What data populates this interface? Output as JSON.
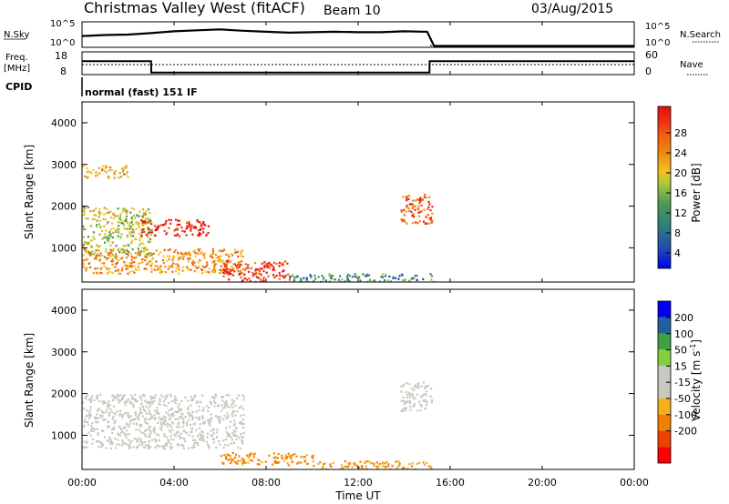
{
  "header": {
    "station": "Christmas Valley West (fitACF)",
    "beam": "Beam 10",
    "date": "03/Aug/2015"
  },
  "noise_panel": {
    "left_label": "N.Sky",
    "right_label": "N.Search",
    "left_ticks": [
      "10^5",
      "10^0"
    ],
    "right_ticks": [
      "10^5",
      "10^0"
    ]
  },
  "freq_panel": {
    "left_label_line1": "Freq.",
    "left_label_line2": "[MHz]",
    "left_ticks": [
      "18",
      "8"
    ],
    "right_ticks": [
      "60",
      "0"
    ],
    "right_label": "Nave"
  },
  "cpid": {
    "label": "CPID",
    "value": "normal (fast) 151 IF"
  },
  "x_axis": {
    "label": "Time UT",
    "ticks": [
      "00:00",
      "04:00",
      "08:00",
      "12:00",
      "16:00",
      "20:00",
      "00:00"
    ]
  },
  "colors": {
    "power_scale": [
      "#0000ee",
      "#1f4fb0",
      "#2e7f7a",
      "#4a9a55",
      "#a8c83a",
      "#f5c020",
      "#f09010",
      "#f06010",
      "#ee2a10",
      "#e01010"
    ],
    "velocity_scale": [
      "#ff0000",
      "#f04000",
      "#f08000",
      "#f5b020",
      "#c8c8c0",
      "#c8c8c0",
      "#80d040",
      "#40a040",
      "#1f60a0",
      "#0000ee"
    ]
  },
  "chart_data": [
    {
      "type": "line",
      "title": "N.Sky / N.Search",
      "x": [
        0,
        1,
        2,
        3,
        4,
        5,
        6,
        7,
        8,
        9,
        10,
        11,
        12,
        13,
        14,
        15,
        15.3,
        16,
        18,
        20,
        22,
        24
      ],
      "series": [
        {
          "name": "N.Sky",
          "values": [
            2.2,
            2.4,
            2.5,
            2.8,
            3.2,
            3.4,
            3.6,
            3.3,
            3.1,
            2.9,
            3.0,
            3.1,
            3.0,
            3.0,
            3.2,
            3.1,
            0.1,
            0.1,
            0.1,
            0.1,
            0.1,
            0.1
          ]
        }
      ],
      "ylim": [
        0,
        5
      ]
    },
    {
      "type": "line",
      "title": "Freq. [MHz] / Nave",
      "x": [
        0,
        3,
        3.01,
        15.1,
        15.11,
        24
      ],
      "series": [
        {
          "name": "Freq.",
          "values": [
            14,
            14,
            8.5,
            8.5,
            14,
            14
          ]
        }
      ],
      "ylim": [
        8,
        18
      ]
    },
    {
      "type": "heatmap",
      "ylabel": "Slant Range [km]",
      "xlabel": "Time UT",
      "xlim": [
        0,
        24
      ],
      "ylim": [
        180,
        4500
      ],
      "yticks": [
        1000,
        2000,
        3000,
        4000
      ],
      "colorbar": {
        "label": "Power [dB]",
        "ticks": [
          "28",
          "24",
          "20",
          "16",
          "12",
          "8",
          "4"
        ]
      },
      "x": [
        0.5,
        1.5,
        2.5,
        3.5,
        4.5,
        5.5,
        6.5,
        7.5,
        8.5,
        9.5,
        10.5,
        11.5,
        12.5,
        13.5,
        14.5,
        15.2
      ],
      "regions": [
        {
          "t": [
            0,
            3
          ],
          "r": [
            800,
            2000
          ],
          "power": 14
        },
        {
          "t": [
            2.5,
            5.5
          ],
          "r": [
            1300,
            1700
          ],
          "power": 28
        },
        {
          "t": [
            0,
            7
          ],
          "r": [
            400,
            1000
          ],
          "power": 20
        },
        {
          "t": [
            6,
            9
          ],
          "r": [
            200,
            700
          ],
          "power": 26
        },
        {
          "t": [
            0,
            2
          ],
          "r": [
            2700,
            3000
          ],
          "power": 18
        },
        {
          "t": [
            9,
            15.3
          ],
          "r": [
            200,
            400
          ],
          "power": 8
        },
        {
          "t": [
            13.8,
            15.2
          ],
          "r": [
            1600,
            2300
          ],
          "power": 24
        }
      ]
    },
    {
      "type": "heatmap",
      "ylabel": "Slant Range [km]",
      "xlabel": "Time UT",
      "xlim": [
        0,
        24
      ],
      "ylim": [
        180,
        4500
      ],
      "yticks": [
        1000,
        2000,
        3000,
        4000
      ],
      "colorbar": {
        "label": "Velocity [m s^-1]",
        "ticks": [
          "200",
          "100",
          "50",
          "15",
          "-15",
          "-50",
          "-100",
          "-200"
        ]
      },
      "regions": [
        {
          "t": [
            0,
            7
          ],
          "r": [
            700,
            2000
          ],
          "velocity": 0
        },
        {
          "t": [
            6,
            10
          ],
          "r": [
            300,
            600
          ],
          "velocity": -60
        },
        {
          "t": [
            10,
            15.3
          ],
          "r": [
            200,
            400
          ],
          "velocity": -50
        },
        {
          "t": [
            13.8,
            15.2
          ],
          "r": [
            1600,
            2300
          ],
          "velocity": 0
        }
      ]
    }
  ]
}
